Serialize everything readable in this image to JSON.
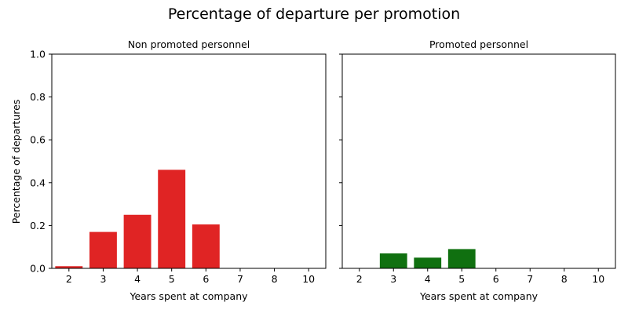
{
  "figure": {
    "title": "Percentage of departure per promotion"
  },
  "colors": {
    "non_promoted": "#e02424",
    "promoted": "#107010",
    "axis": "#000000"
  },
  "chart_data": [
    {
      "type": "bar",
      "title": "Non promoted personnel",
      "xlabel": "Years spent at company",
      "ylabel": "Percentage of departures",
      "categories": [
        "2",
        "3",
        "4",
        "5",
        "6",
        "7",
        "8",
        "10"
      ],
      "values": [
        0.01,
        0.17,
        0.25,
        0.46,
        0.205,
        0,
        0,
        0
      ],
      "ylim": [
        0,
        1
      ],
      "yticks": [
        "0.0",
        "0.2",
        "0.4",
        "0.6",
        "0.8",
        "1.0"
      ],
      "grid": false,
      "color": "#e02424"
    },
    {
      "type": "bar",
      "title": "Promoted personnel",
      "xlabel": "Years spent at company",
      "ylabel": "",
      "categories": [
        "2",
        "3",
        "4",
        "5",
        "6",
        "7",
        "8",
        "10"
      ],
      "values": [
        0,
        0.07,
        0.05,
        0.09,
        0,
        0,
        0,
        0
      ],
      "ylim": [
        0,
        1
      ],
      "yticks": [
        "0.0",
        "0.2",
        "0.4",
        "0.6",
        "0.8",
        "1.0"
      ],
      "grid": false,
      "color": "#107010"
    }
  ]
}
